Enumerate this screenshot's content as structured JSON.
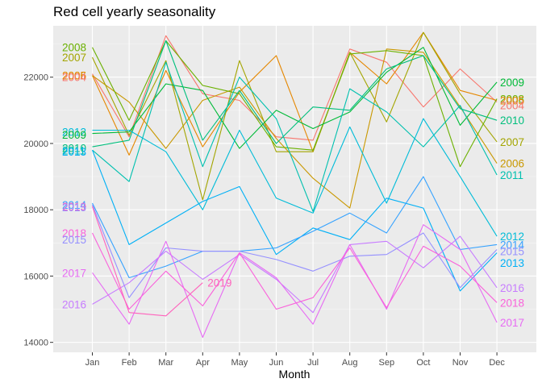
{
  "chart_data": {
    "type": "line",
    "title": "Red cell yearly seasonality",
    "xlabel": "Month",
    "ylabel": "",
    "ylim": [
      13700,
      23550
    ],
    "grid": true,
    "legend": "none (series labelled directly at both ends)",
    "categories": [
      "Jan",
      "Feb",
      "Mar",
      "Apr",
      "May",
      "Jun",
      "Jul",
      "Aug",
      "Sep",
      "Oct",
      "Nov",
      "Dec"
    ],
    "y_ticks": [
      14000,
      16000,
      18000,
      20000,
      22000
    ],
    "y_tick_labels": [
      "14000",
      "16000",
      "18000",
      "20000",
      "22000"
    ],
    "series": [
      {
        "name": "2004",
        "color": "#F8766D",
        "values": [
          22100,
          20200,
          23250,
          21500,
          21300,
          20200,
          20100,
          22850,
          22450,
          21100,
          22250,
          21250
        ]
      },
      {
        "name": "2005",
        "color": "#E58700",
        "values": [
          22050,
          19650,
          22200,
          19900,
          21550,
          22650,
          19750,
          22750,
          21800,
          23350,
          21600,
          21300
        ]
      },
      {
        "name": "2006",
        "color": "#C99800",
        "values": [
          22050,
          21250,
          19850,
          21300,
          21700,
          20150,
          18950,
          18050,
          22850,
          22750,
          21100,
          19400
        ]
      },
      {
        "name": "2007",
        "color": "#A3A500",
        "values": [
          22600,
          20250,
          22500,
          18300,
          22500,
          19750,
          19750,
          22750,
          20650,
          23350,
          21500,
          20050
        ]
      },
      {
        "name": "2008",
        "color": "#6BB100",
        "values": [
          22900,
          20700,
          23100,
          21750,
          21500,
          19900,
          19800,
          22700,
          22800,
          22650,
          19300,
          21350
        ]
      },
      {
        "name": "2009",
        "color": "#00BA38",
        "values": [
          20300,
          20350,
          21800,
          21600,
          19850,
          21000,
          20450,
          20950,
          22150,
          22900,
          20550,
          21850
        ]
      },
      {
        "name": "2010",
        "color": "#00BF7D",
        "values": [
          19900,
          20100,
          23100,
          20100,
          21600,
          20000,
          21100,
          21000,
          22250,
          22650,
          21050,
          20700
        ]
      },
      {
        "name": "2011",
        "color": "#00C0AF",
        "values": [
          19800,
          18850,
          22450,
          19300,
          22000,
          20750,
          17950,
          21650,
          20950,
          19900,
          21150,
          19050
        ]
      },
      {
        "name": "2012",
        "color": "#00BCD8",
        "values": [
          20400,
          20400,
          19750,
          18000,
          20400,
          18350,
          17900,
          20500,
          18200,
          20750,
          19000,
          17200
        ]
      },
      {
        "name": "2013",
        "color": "#00B0F6",
        "values": [
          19800,
          16950,
          17600,
          18250,
          18700,
          16650,
          17450,
          17100,
          18350,
          18050,
          15550,
          16700
        ]
      },
      {
        "name": "2014",
        "color": "#35A2FF",
        "values": [
          18200,
          15950,
          16300,
          16750,
          16750,
          16850,
          17350,
          17900,
          17300,
          19000,
          16800,
          16950
        ]
      },
      {
        "name": "2015",
        "color": "#9590FF",
        "values": [
          18150,
          15350,
          16850,
          16750,
          16750,
          16500,
          16150,
          16600,
          16650,
          17300,
          15650,
          16800
        ]
      },
      {
        "name": "2016",
        "color": "#C77CFF",
        "values": [
          15150,
          15800,
          16750,
          15900,
          16650,
          15900,
          14900,
          16950,
          17050,
          16250,
          17200,
          15650
        ]
      },
      {
        "name": "2017",
        "color": "#E76BF3",
        "values": [
          16100,
          14550,
          17050,
          14150,
          16700,
          15950,
          14550,
          16950,
          15000,
          17550,
          16800,
          14600
        ]
      },
      {
        "name": "2018",
        "color": "#FA62DB",
        "values": [
          17300,
          15000,
          16150,
          15100,
          16700,
          15000,
          15350,
          16850,
          15050,
          16900,
          16300,
          15200
        ]
      },
      {
        "name": "2019",
        "color": "#FF62BC",
        "values": [
          18100,
          14900,
          14800,
          15800,
          null,
          null,
          null,
          null,
          null,
          null,
          null,
          null
        ]
      }
    ],
    "left_labels": [
      {
        "text": "2008",
        "color": "#6BB100",
        "y": 22900
      },
      {
        "text": "2007",
        "color": "#A3A500",
        "y": 22600
      },
      {
        "text": "2006",
        "color": "#C99800",
        "y": 22050
      },
      {
        "text": "2005",
        "color": "#E58700",
        "y": 22050
      },
      {
        "text": "2004",
        "color": "#F8766D",
        "y": 22000
      },
      {
        "text": "2012",
        "color": "#00BCD8",
        "y": 20350
      },
      {
        "text": "2009",
        "color": "#00BA38",
        "y": 20270
      },
      {
        "text": "2010",
        "color": "#00BF7D",
        "y": 19870
      },
      {
        "text": "2011",
        "color": "#00C0AF",
        "y": 19790
      },
      {
        "text": "2013",
        "color": "#00B0F6",
        "y": 19760
      },
      {
        "text": "2014",
        "color": "#35A2FF",
        "y": 18150
      },
      {
        "text": "2019",
        "color": "#FF62BC",
        "y": 18100
      },
      {
        "text": "2015",
        "color": "#9590FF",
        "y": 18080
      },
      {
        "text": "2018",
        "color": "#FA62DB",
        "y": 17300
      },
      {
        "text": "2015",
        "color": "#9590FF",
        "y": 17100
      },
      {
        "text": "2017",
        "color": "#E76BF3",
        "y": 16100
      },
      {
        "text": "2016",
        "color": "#C77CFF",
        "y": 15150
      }
    ],
    "right_labels": [
      {
        "text": "2009",
        "color": "#00BA38",
        "y": 21850
      },
      {
        "text": "2008",
        "color": "#6BB100",
        "y": 21350
      },
      {
        "text": "2005",
        "color": "#E58700",
        "y": 21300
      },
      {
        "text": "2004",
        "color": "#F8766D",
        "y": 21150
      },
      {
        "text": "2010",
        "color": "#00BF7D",
        "y": 20700
      },
      {
        "text": "2007",
        "color": "#A3A500",
        "y": 20050
      },
      {
        "text": "2006",
        "color": "#C99800",
        "y": 19400
      },
      {
        "text": "2011",
        "color": "#00C0AF",
        "y": 19050
      },
      {
        "text": "2012",
        "color": "#00BCD8",
        "y": 17200
      },
      {
        "text": "2014",
        "color": "#35A2FF",
        "y": 16950
      },
      {
        "text": "2015",
        "color": "#9590FF",
        "y": 16750
      },
      {
        "text": "2013",
        "color": "#00B0F6",
        "y": 16400
      },
      {
        "text": "2016",
        "color": "#C77CFF",
        "y": 15650
      },
      {
        "text": "2018",
        "color": "#FA62DB",
        "y": 15200
      },
      {
        "text": "2017",
        "color": "#E76BF3",
        "y": 14600
      }
    ],
    "end_labels": [
      {
        "text": "2019",
        "color": "#FF62BC",
        "x_category": "Apr",
        "y": 15800
      }
    ]
  }
}
